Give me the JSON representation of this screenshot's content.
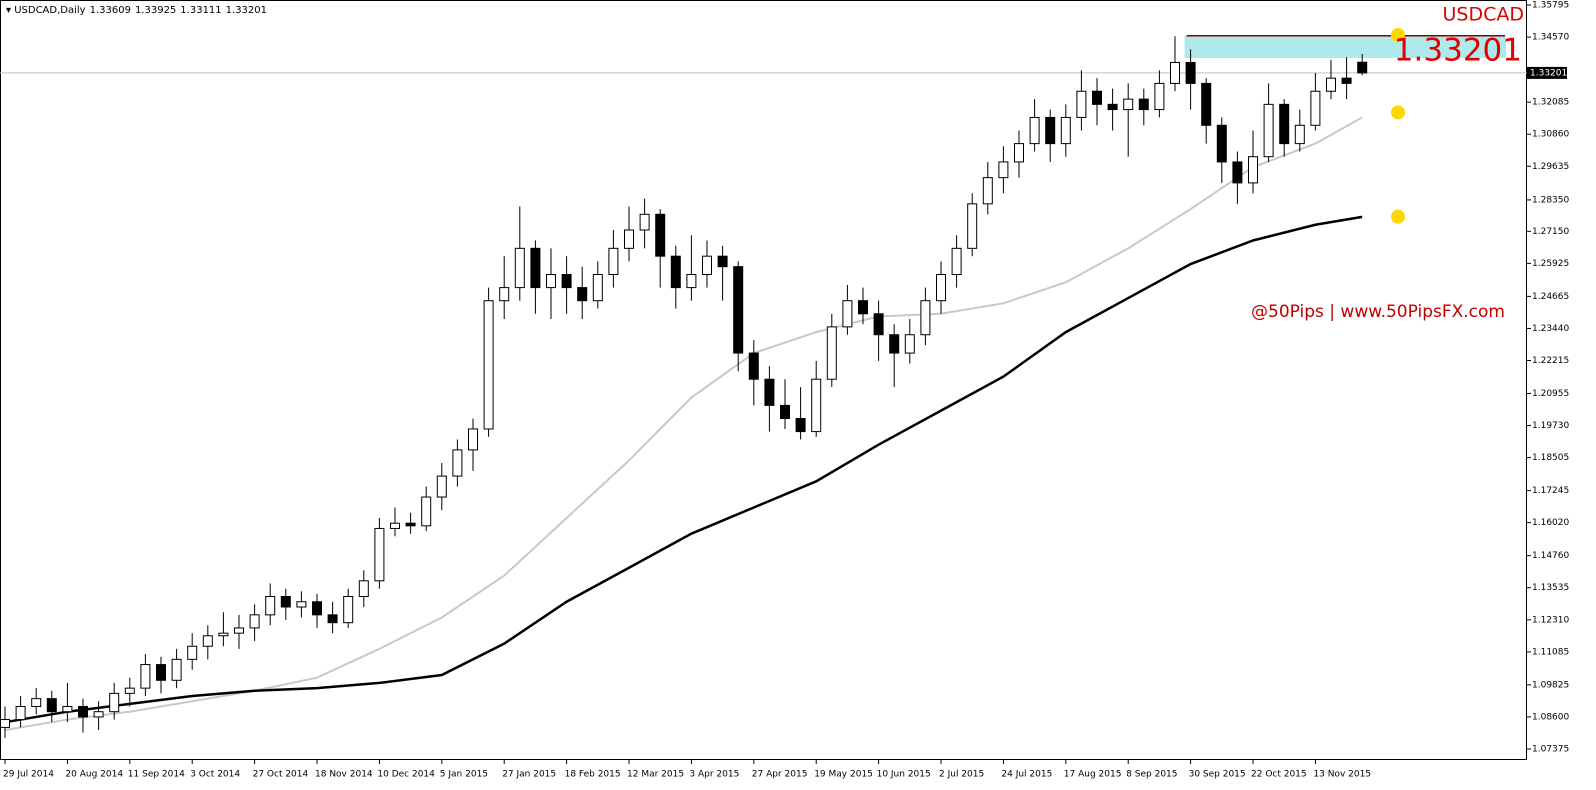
{
  "chart_data": {
    "type": "candlestick",
    "symbol": "USDCAD,Daily",
    "title": "USDCAD",
    "watermark": "@50Pips | www.50PipsFX.com",
    "categories": [
      "29 Jul 2014",
      null,
      null,
      null,
      "20 Aug 2014",
      null,
      null,
      null,
      "11 Sep 2014",
      null,
      null,
      null,
      "3 Oct 2014",
      null,
      null,
      null,
      "27 Oct 2014",
      null,
      null,
      null,
      "18 Nov 2014",
      null,
      null,
      null,
      "10 Dec 2014",
      null,
      null,
      null,
      "5 Jan 2015",
      null,
      null,
      null,
      "27 Jan 2015",
      null,
      null,
      null,
      "18 Feb 2015",
      null,
      null,
      null,
      "12 Mar 2015",
      null,
      null,
      null,
      "3 Apr 2015",
      null,
      null,
      null,
      "27 Apr 2015",
      null,
      null,
      null,
      "19 May 2015",
      null,
      null,
      null,
      "10 Jun 2015",
      null,
      null,
      null,
      "2 Jul 2015",
      null,
      null,
      null,
      "24 Jul 2015",
      null,
      null,
      null,
      "17 Aug 2015",
      null,
      null,
      null,
      "8 Sep 2015",
      null,
      null,
      null,
      "30 Sep 2015",
      null,
      null,
      null,
      "22 Oct 2015",
      null,
      null,
      null,
      "13 Nov 2015",
      null,
      null,
      null
    ],
    "candles": {
      "open": [
        1.082,
        1.085,
        1.09,
        1.093,
        1.088,
        1.09,
        1.086,
        1.088,
        1.095,
        1.097,
        1.106,
        1.1,
        1.108,
        1.113,
        1.117,
        1.118,
        1.12,
        1.125,
        1.132,
        1.128,
        1.13,
        1.125,
        1.122,
        1.132,
        1.138,
        1.158,
        1.16,
        1.159,
        1.17,
        1.178,
        1.188,
        1.196,
        1.245,
        1.25,
        1.265,
        1.25,
        1.255,
        1.25,
        1.245,
        1.255,
        1.265,
        1.272,
        1.278,
        1.262,
        1.25,
        1.255,
        1.262,
        1.258,
        1.225,
        1.215,
        1.205,
        1.2,
        1.195,
        1.215,
        1.235,
        1.245,
        1.24,
        1.232,
        1.225,
        1.232,
        1.245,
        1.255,
        1.265,
        1.282,
        1.292,
        1.298,
        1.305,
        1.315,
        1.305,
        1.315,
        1.325,
        1.32,
        1.318,
        1.322,
        1.318,
        1.328,
        1.336,
        1.328,
        1.312,
        1.298,
        1.29,
        1.3,
        1.32,
        1.305,
        1.312,
        1.325,
        1.33,
        1.33609
      ],
      "high": [
        1.09,
        1.094,
        1.097,
        1.096,
        1.099,
        1.093,
        1.092,
        1.099,
        1.101,
        1.11,
        1.109,
        1.112,
        1.118,
        1.121,
        1.126,
        1.125,
        1.129,
        1.137,
        1.135,
        1.134,
        1.133,
        1.13,
        1.135,
        1.142,
        1.162,
        1.166,
        1.164,
        1.174,
        1.183,
        1.192,
        1.2,
        1.25,
        1.262,
        1.281,
        1.268,
        1.265,
        1.262,
        1.258,
        1.26,
        1.272,
        1.281,
        1.284,
        1.28,
        1.266,
        1.27,
        1.268,
        1.266,
        1.26,
        1.23,
        1.22,
        1.215,
        1.212,
        1.222,
        1.24,
        1.251,
        1.25,
        1.245,
        1.236,
        1.238,
        1.25,
        1.26,
        1.27,
        1.286,
        1.298,
        1.304,
        1.31,
        1.322,
        1.318,
        1.32,
        1.333,
        1.33,
        1.326,
        1.328,
        1.326,
        1.333,
        1.346,
        1.341,
        1.33,
        1.315,
        1.302,
        1.31,
        1.328,
        1.322,
        1.318,
        1.332,
        1.337,
        1.338,
        1.33925
      ],
      "low": [
        1.078,
        1.082,
        1.087,
        1.084,
        1.084,
        1.08,
        1.081,
        1.085,
        1.09,
        1.094,
        1.095,
        1.097,
        1.104,
        1.108,
        1.113,
        1.112,
        1.115,
        1.121,
        1.123,
        1.124,
        1.12,
        1.118,
        1.12,
        1.128,
        1.135,
        1.155,
        1.156,
        1.157,
        1.165,
        1.174,
        1.18,
        1.193,
        1.238,
        1.245,
        1.24,
        1.238,
        1.24,
        1.238,
        1.242,
        1.25,
        1.26,
        1.265,
        1.25,
        1.242,
        1.245,
        1.25,
        1.245,
        1.218,
        1.205,
        1.195,
        1.196,
        1.192,
        1.193,
        1.212,
        1.232,
        1.236,
        1.222,
        1.212,
        1.221,
        1.228,
        1.24,
        1.25,
        1.262,
        1.278,
        1.286,
        1.292,
        1.302,
        1.298,
        1.3,
        1.31,
        1.312,
        1.31,
        1.3,
        1.312,
        1.315,
        1.325,
        1.318,
        1.305,
        1.29,
        1.282,
        1.286,
        1.298,
        1.3,
        1.302,
        1.31,
        1.322,
        1.322,
        1.33111
      ],
      "close": [
        1.085,
        1.09,
        1.093,
        1.088,
        1.09,
        1.086,
        1.088,
        1.095,
        1.097,
        1.106,
        1.1,
        1.108,
        1.113,
        1.117,
        1.118,
        1.12,
        1.125,
        1.132,
        1.128,
        1.13,
        1.125,
        1.122,
        1.132,
        1.138,
        1.158,
        1.16,
        1.159,
        1.17,
        1.178,
        1.188,
        1.196,
        1.245,
        1.25,
        1.265,
        1.25,
        1.255,
        1.25,
        1.245,
        1.255,
        1.265,
        1.272,
        1.278,
        1.262,
        1.25,
        1.255,
        1.262,
        1.258,
        1.225,
        1.215,
        1.205,
        1.2,
        1.195,
        1.215,
        1.235,
        1.245,
        1.24,
        1.232,
        1.225,
        1.232,
        1.245,
        1.255,
        1.265,
        1.282,
        1.292,
        1.298,
        1.305,
        1.315,
        1.305,
        1.315,
        1.325,
        1.32,
        1.318,
        1.322,
        1.318,
        1.328,
        1.336,
        1.328,
        1.312,
        1.298,
        1.29,
        1.3,
        1.32,
        1.305,
        1.312,
        1.325,
        1.33,
        1.328,
        1.33201
      ]
    },
    "ma_lines": [
      {
        "color": "#c8c8c8",
        "x": [
          0,
          4,
          8,
          12,
          16,
          20,
          24,
          28,
          32,
          36,
          40,
          44,
          48,
          52,
          56,
          60,
          64,
          68,
          72,
          76,
          80,
          84,
          87
        ],
        "values": [
          1.081,
          1.085,
          1.088,
          1.092,
          1.096,
          1.101,
          1.112,
          1.124,
          1.14,
          1.162,
          1.184,
          1.208,
          1.225,
          1.233,
          1.239,
          1.24,
          1.244,
          1.252,
          1.265,
          1.28,
          1.296,
          1.305,
          1.315
        ]
      },
      {
        "color": "#000000",
        "x": [
          0,
          4,
          8,
          12,
          16,
          20,
          24,
          28,
          32,
          36,
          40,
          44,
          48,
          52,
          56,
          60,
          64,
          68,
          72,
          76,
          80,
          84,
          87
        ],
        "values": [
          1.084,
          1.088,
          1.091,
          1.094,
          1.096,
          1.097,
          1.099,
          1.102,
          1.114,
          1.13,
          1.143,
          1.156,
          1.166,
          1.176,
          1.19,
          1.203,
          1.216,
          1.233,
          1.246,
          1.259,
          1.268,
          1.274,
          1.277
        ]
      }
    ],
    "resistance_zone": {
      "x_start": 76,
      "top": 1.3462,
      "bottom": 1.3377,
      "color": "#aeeaec",
      "line_color": "#8b0000"
    },
    "markers": {
      "color": "#ffd700",
      "values": [
        1.3465,
        1.3169,
        1.2771
      ]
    },
    "ylim": [
      1.06955,
      1.35986
    ],
    "yticks": [
      1.35795,
      {
        "value": 1.3457,
        "label": "1.34570"
      },
      1.32085,
      {
        "value": 1.3086,
        "label": "1.30860"
      },
      1.29635,
      {
        "value": 1.2835,
        "label": "1.28350"
      },
      {
        "value": 1.2715,
        "label": "1.27150"
      },
      1.25925,
      1.24665,
      {
        "value": 1.2344,
        "label": "1.23440"
      },
      1.22215,
      1.20955,
      {
        "value": 1.1973,
        "label": "1.19730"
      },
      1.18505,
      1.17245,
      {
        "value": 1.1602,
        "label": "1.16020"
      },
      {
        "value": 1.1476,
        "label": "1.14760"
      },
      1.13535,
      {
        "value": 1.1231,
        "label": "1.12310"
      },
      1.11085,
      1.09825,
      {
        "value": 1.086,
        "label": "1.08600"
      },
      1.07375
    ],
    "grid": false
  }
}
